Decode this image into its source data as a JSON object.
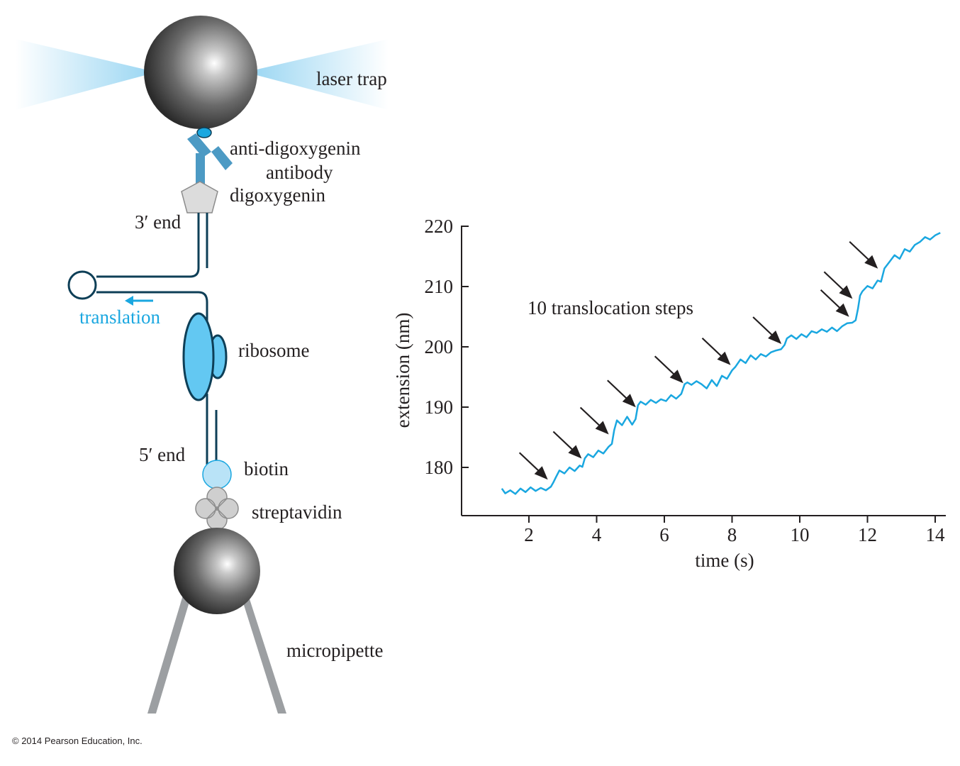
{
  "colors": {
    "trace": "#1aa7e0",
    "strand": "#0e3f57",
    "ribosome": "#63c8f2",
    "antibody": "#4c9ac4",
    "arrow": "#231f20",
    "pipette": "#9c9fa2"
  },
  "diagram": {
    "laser_trap": "laser trap",
    "anti_digoxygenin": "anti-digoxygenin",
    "antibody": "antibody",
    "digoxygenin": "digoxygenin",
    "three_prime_end": "3′ end",
    "translation": "translation",
    "ribosome": "ribosome",
    "five_prime_end": "5′ end",
    "biotin": "biotin",
    "streptavidin": "streptavidin",
    "micropipette": "micropipette"
  },
  "copyright": "© 2014 Pearson Education, Inc.",
  "chart_data": {
    "type": "line",
    "title": "",
    "annotation": "10 translocation steps",
    "xlabel": "time (s)",
    "ylabel": "extension (nm)",
    "xlim": [
      0,
      14.3
    ],
    "ylim": [
      172,
      221
    ],
    "xticks": [
      2,
      4,
      6,
      8,
      10,
      12,
      14
    ],
    "yticks": [
      180,
      190,
      200,
      210,
      220
    ],
    "grid": false,
    "series": [
      {
        "x": [
          1.2,
          1.3,
          1.45,
          1.6,
          1.75,
          1.9,
          2.05,
          2.2,
          2.35,
          2.5,
          2.65,
          2.72,
          2.8,
          2.9,
          3.05,
          3.2,
          3.35,
          3.5,
          3.58,
          3.65,
          3.75,
          3.9,
          4.05,
          4.2,
          4.35,
          4.45,
          4.52,
          4.6,
          4.75,
          4.9,
          5.05,
          5.15,
          5.22,
          5.3,
          5.45,
          5.6,
          5.75,
          5.9,
          6.05,
          6.2,
          6.35,
          6.5,
          6.6,
          6.68,
          6.8,
          6.95,
          7.1,
          7.25,
          7.4,
          7.55,
          7.7,
          7.85,
          8.0,
          8.1,
          8.25,
          8.4,
          8.55,
          8.7,
          8.85,
          9.0,
          9.15,
          9.3,
          9.45,
          9.55,
          9.62,
          9.75,
          9.9,
          10.05,
          10.2,
          10.35,
          10.5,
          10.65,
          10.8,
          10.95,
          11.1,
          11.25,
          11.4,
          11.55,
          11.65,
          11.72,
          11.78,
          11.85,
          12.0,
          12.15,
          12.3,
          12.4,
          12.5,
          12.65,
          12.8,
          12.95,
          13.1,
          13.25,
          13.4,
          13.55,
          13.7,
          13.85,
          14.0,
          14.15
        ],
        "y": [
          176.5,
          175.7,
          176.2,
          175.6,
          176.5,
          175.9,
          176.7,
          176.1,
          176.6,
          176.2,
          176.8,
          177.5,
          178.4,
          179.5,
          179.0,
          180.0,
          179.4,
          180.3,
          180.1,
          181.5,
          182.2,
          181.7,
          182.8,
          182.3,
          183.4,
          183.9,
          186.2,
          187.8,
          187.0,
          188.4,
          187.1,
          188.0,
          190.3,
          190.9,
          190.4,
          191.2,
          190.7,
          191.3,
          191.0,
          192.0,
          191.4,
          192.2,
          193.8,
          194.1,
          193.7,
          194.3,
          193.8,
          193.1,
          194.5,
          193.5,
          195.2,
          194.7,
          196.1,
          196.7,
          197.9,
          197.3,
          198.6,
          197.9,
          198.8,
          198.4,
          199.1,
          199.4,
          199.6,
          200.3,
          201.4,
          201.9,
          201.3,
          202.1,
          201.6,
          202.6,
          202.3,
          202.9,
          202.5,
          203.2,
          202.6,
          203.4,
          203.9,
          204.0,
          204.4,
          206.3,
          208.5,
          209.2,
          210.1,
          209.7,
          211.0,
          210.8,
          213.0,
          214.1,
          215.2,
          214.6,
          216.2,
          215.8,
          216.9,
          217.4,
          218.2,
          217.8,
          218.5,
          218.9
        ]
      }
    ],
    "step_arrows_at": [
      {
        "x": 2.6,
        "y": 177.5
      },
      {
        "x": 3.6,
        "y": 181.0
      },
      {
        "x": 4.4,
        "y": 185.0
      },
      {
        "x": 5.2,
        "y": 189.5
      },
      {
        "x": 6.6,
        "y": 193.5
      },
      {
        "x": 8.0,
        "y": 196.5
      },
      {
        "x": 9.5,
        "y": 200.0
      },
      {
        "x": 11.5,
        "y": 204.5
      },
      {
        "x": 11.6,
        "y": 207.5
      },
      {
        "x": 12.35,
        "y": 212.5
      }
    ]
  }
}
